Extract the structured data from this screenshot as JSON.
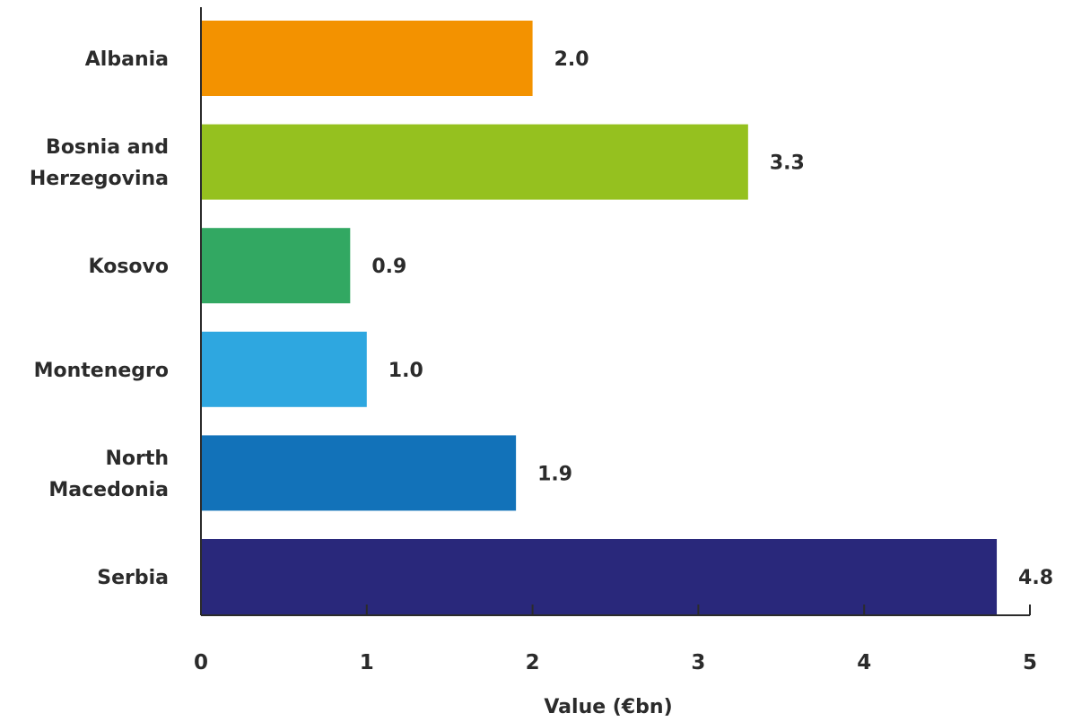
{
  "chart_data": {
    "type": "bar",
    "orientation": "horizontal",
    "categories": [
      "Albania",
      "Bosnia and Herzegovina",
      "Kosovo",
      "Montenegro",
      "North Macedonia",
      "Serbia"
    ],
    "category_lines": [
      [
        "Albania"
      ],
      [
        "Bosnia and",
        "Herzegovina"
      ],
      [
        "Kosovo"
      ],
      [
        "Montenegro"
      ],
      [
        "North",
        "Macedonia"
      ],
      [
        "Serbia"
      ]
    ],
    "values": [
      2.0,
      3.3,
      0.9,
      1.0,
      1.9,
      4.8
    ],
    "value_labels": [
      "2.0",
      "3.3",
      "0.9",
      "1.0",
      "1.9",
      "4.8"
    ],
    "colors": [
      "#f39200",
      "#95c11f",
      "#32a862",
      "#2ea7e0",
      "#1272b9",
      "#29287b"
    ],
    "xlabel": "Value (€bn)",
    "ylabel": "",
    "title": "",
    "xlim": [
      0,
      5
    ],
    "xticks": [
      0,
      1,
      2,
      3,
      4,
      5
    ],
    "grid": false,
    "legend": "none"
  }
}
